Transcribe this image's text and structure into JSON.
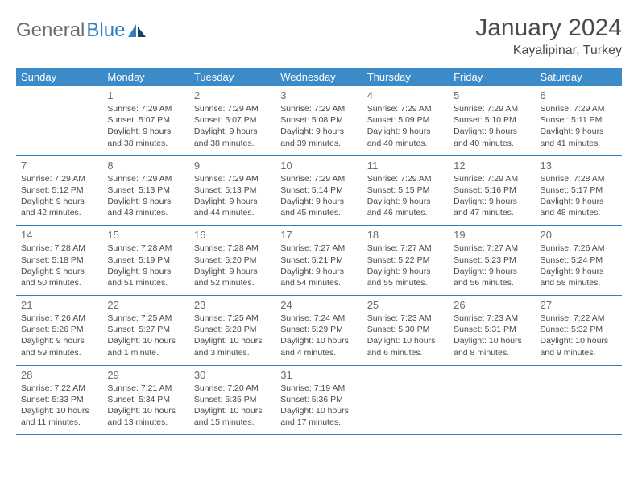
{
  "brand": {
    "part1": "General",
    "part2": "Blue"
  },
  "title": "January 2024",
  "location": "Kayalipinar, Turkey",
  "colors": {
    "header_bg": "#3b8bc9",
    "header_text": "#ffffff",
    "rule": "#2f7fc2",
    "body_text": "#4a4a4a",
    "daynum": "#6b6b6b",
    "logo_blue": "#2f7fc2",
    "logo_gray": "#6b6b6b",
    "background": "#ffffff"
  },
  "dayNames": [
    "Sunday",
    "Monday",
    "Tuesday",
    "Wednesday",
    "Thursday",
    "Friday",
    "Saturday"
  ],
  "weeks": [
    [
      {
        "day": "",
        "sunrise": "",
        "sunset": "",
        "daylight1": "",
        "daylight2": ""
      },
      {
        "day": "1",
        "sunrise": "Sunrise: 7:29 AM",
        "sunset": "Sunset: 5:07 PM",
        "daylight1": "Daylight: 9 hours",
        "daylight2": "and 38 minutes."
      },
      {
        "day": "2",
        "sunrise": "Sunrise: 7:29 AM",
        "sunset": "Sunset: 5:07 PM",
        "daylight1": "Daylight: 9 hours",
        "daylight2": "and 38 minutes."
      },
      {
        "day": "3",
        "sunrise": "Sunrise: 7:29 AM",
        "sunset": "Sunset: 5:08 PM",
        "daylight1": "Daylight: 9 hours",
        "daylight2": "and 39 minutes."
      },
      {
        "day": "4",
        "sunrise": "Sunrise: 7:29 AM",
        "sunset": "Sunset: 5:09 PM",
        "daylight1": "Daylight: 9 hours",
        "daylight2": "and 40 minutes."
      },
      {
        "day": "5",
        "sunrise": "Sunrise: 7:29 AM",
        "sunset": "Sunset: 5:10 PM",
        "daylight1": "Daylight: 9 hours",
        "daylight2": "and 40 minutes."
      },
      {
        "day": "6",
        "sunrise": "Sunrise: 7:29 AM",
        "sunset": "Sunset: 5:11 PM",
        "daylight1": "Daylight: 9 hours",
        "daylight2": "and 41 minutes."
      }
    ],
    [
      {
        "day": "7",
        "sunrise": "Sunrise: 7:29 AM",
        "sunset": "Sunset: 5:12 PM",
        "daylight1": "Daylight: 9 hours",
        "daylight2": "and 42 minutes."
      },
      {
        "day": "8",
        "sunrise": "Sunrise: 7:29 AM",
        "sunset": "Sunset: 5:13 PM",
        "daylight1": "Daylight: 9 hours",
        "daylight2": "and 43 minutes."
      },
      {
        "day": "9",
        "sunrise": "Sunrise: 7:29 AM",
        "sunset": "Sunset: 5:13 PM",
        "daylight1": "Daylight: 9 hours",
        "daylight2": "and 44 minutes."
      },
      {
        "day": "10",
        "sunrise": "Sunrise: 7:29 AM",
        "sunset": "Sunset: 5:14 PM",
        "daylight1": "Daylight: 9 hours",
        "daylight2": "and 45 minutes."
      },
      {
        "day": "11",
        "sunrise": "Sunrise: 7:29 AM",
        "sunset": "Sunset: 5:15 PM",
        "daylight1": "Daylight: 9 hours",
        "daylight2": "and 46 minutes."
      },
      {
        "day": "12",
        "sunrise": "Sunrise: 7:29 AM",
        "sunset": "Sunset: 5:16 PM",
        "daylight1": "Daylight: 9 hours",
        "daylight2": "and 47 minutes."
      },
      {
        "day": "13",
        "sunrise": "Sunrise: 7:28 AM",
        "sunset": "Sunset: 5:17 PM",
        "daylight1": "Daylight: 9 hours",
        "daylight2": "and 48 minutes."
      }
    ],
    [
      {
        "day": "14",
        "sunrise": "Sunrise: 7:28 AM",
        "sunset": "Sunset: 5:18 PM",
        "daylight1": "Daylight: 9 hours",
        "daylight2": "and 50 minutes."
      },
      {
        "day": "15",
        "sunrise": "Sunrise: 7:28 AM",
        "sunset": "Sunset: 5:19 PM",
        "daylight1": "Daylight: 9 hours",
        "daylight2": "and 51 minutes."
      },
      {
        "day": "16",
        "sunrise": "Sunrise: 7:28 AM",
        "sunset": "Sunset: 5:20 PM",
        "daylight1": "Daylight: 9 hours",
        "daylight2": "and 52 minutes."
      },
      {
        "day": "17",
        "sunrise": "Sunrise: 7:27 AM",
        "sunset": "Sunset: 5:21 PM",
        "daylight1": "Daylight: 9 hours",
        "daylight2": "and 54 minutes."
      },
      {
        "day": "18",
        "sunrise": "Sunrise: 7:27 AM",
        "sunset": "Sunset: 5:22 PM",
        "daylight1": "Daylight: 9 hours",
        "daylight2": "and 55 minutes."
      },
      {
        "day": "19",
        "sunrise": "Sunrise: 7:27 AM",
        "sunset": "Sunset: 5:23 PM",
        "daylight1": "Daylight: 9 hours",
        "daylight2": "and 56 minutes."
      },
      {
        "day": "20",
        "sunrise": "Sunrise: 7:26 AM",
        "sunset": "Sunset: 5:24 PM",
        "daylight1": "Daylight: 9 hours",
        "daylight2": "and 58 minutes."
      }
    ],
    [
      {
        "day": "21",
        "sunrise": "Sunrise: 7:26 AM",
        "sunset": "Sunset: 5:26 PM",
        "daylight1": "Daylight: 9 hours",
        "daylight2": "and 59 minutes."
      },
      {
        "day": "22",
        "sunrise": "Sunrise: 7:25 AM",
        "sunset": "Sunset: 5:27 PM",
        "daylight1": "Daylight: 10 hours",
        "daylight2": "and 1 minute."
      },
      {
        "day": "23",
        "sunrise": "Sunrise: 7:25 AM",
        "sunset": "Sunset: 5:28 PM",
        "daylight1": "Daylight: 10 hours",
        "daylight2": "and 3 minutes."
      },
      {
        "day": "24",
        "sunrise": "Sunrise: 7:24 AM",
        "sunset": "Sunset: 5:29 PM",
        "daylight1": "Daylight: 10 hours",
        "daylight2": "and 4 minutes."
      },
      {
        "day": "25",
        "sunrise": "Sunrise: 7:23 AM",
        "sunset": "Sunset: 5:30 PM",
        "daylight1": "Daylight: 10 hours",
        "daylight2": "and 6 minutes."
      },
      {
        "day": "26",
        "sunrise": "Sunrise: 7:23 AM",
        "sunset": "Sunset: 5:31 PM",
        "daylight1": "Daylight: 10 hours",
        "daylight2": "and 8 minutes."
      },
      {
        "day": "27",
        "sunrise": "Sunrise: 7:22 AM",
        "sunset": "Sunset: 5:32 PM",
        "daylight1": "Daylight: 10 hours",
        "daylight2": "and 9 minutes."
      }
    ],
    [
      {
        "day": "28",
        "sunrise": "Sunrise: 7:22 AM",
        "sunset": "Sunset: 5:33 PM",
        "daylight1": "Daylight: 10 hours",
        "daylight2": "and 11 minutes."
      },
      {
        "day": "29",
        "sunrise": "Sunrise: 7:21 AM",
        "sunset": "Sunset: 5:34 PM",
        "daylight1": "Daylight: 10 hours",
        "daylight2": "and 13 minutes."
      },
      {
        "day": "30",
        "sunrise": "Sunrise: 7:20 AM",
        "sunset": "Sunset: 5:35 PM",
        "daylight1": "Daylight: 10 hours",
        "daylight2": "and 15 minutes."
      },
      {
        "day": "31",
        "sunrise": "Sunrise: 7:19 AM",
        "sunset": "Sunset: 5:36 PM",
        "daylight1": "Daylight: 10 hours",
        "daylight2": "and 17 minutes."
      },
      {
        "day": "",
        "sunrise": "",
        "sunset": "",
        "daylight1": "",
        "daylight2": ""
      },
      {
        "day": "",
        "sunrise": "",
        "sunset": "",
        "daylight1": "",
        "daylight2": ""
      },
      {
        "day": "",
        "sunrise": "",
        "sunset": "",
        "daylight1": "",
        "daylight2": ""
      }
    ]
  ]
}
